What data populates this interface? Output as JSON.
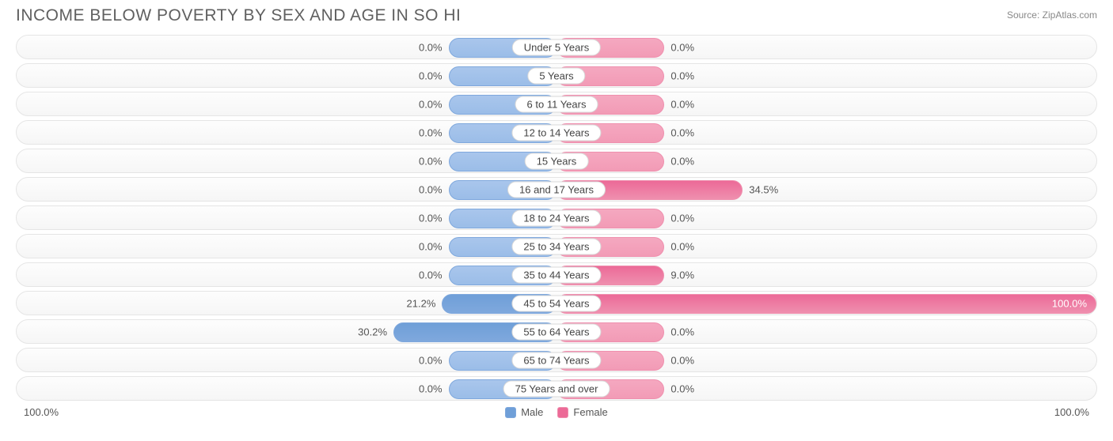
{
  "header": {
    "title": "INCOME BELOW POVERTY BY SEX AND AGE IN SO HI",
    "source": "Source: ZipAtlas.com"
  },
  "chart": {
    "type": "diverging-bar",
    "axis_max": 100.0,
    "min_bar_pct": 20.0,
    "male_color_fill": "#a9c6ec",
    "male_color_border": "#7fa8dd",
    "male_color_strong": "#6f9fd8",
    "female_color_fill": "#f5a8c0",
    "female_color_border": "#ef8fae",
    "female_color_strong": "#ec6a97",
    "track_bg_top": "#fdfdfd",
    "track_bg_bottom": "#f6f6f6",
    "track_border": "#e5e5e5",
    "label_bg": "#ffffff",
    "label_border": "#d8d8d8",
    "text_color": "#555555",
    "value_fontsize": 13,
    "label_fontsize": 13,
    "categories": [
      {
        "label": "Under 5 Years",
        "male": 0.0,
        "female": 0.0
      },
      {
        "label": "5 Years",
        "male": 0.0,
        "female": 0.0
      },
      {
        "label": "6 to 11 Years",
        "male": 0.0,
        "female": 0.0
      },
      {
        "label": "12 to 14 Years",
        "male": 0.0,
        "female": 0.0
      },
      {
        "label": "15 Years",
        "male": 0.0,
        "female": 0.0
      },
      {
        "label": "16 and 17 Years",
        "male": 0.0,
        "female": 34.5
      },
      {
        "label": "18 to 24 Years",
        "male": 0.0,
        "female": 0.0
      },
      {
        "label": "25 to 34 Years",
        "male": 0.0,
        "female": 0.0
      },
      {
        "label": "35 to 44 Years",
        "male": 0.0,
        "female": 9.0
      },
      {
        "label": "45 to 54 Years",
        "male": 21.2,
        "female": 100.0
      },
      {
        "label": "55 to 64 Years",
        "male": 30.2,
        "female": 0.0
      },
      {
        "label": "65 to 74 Years",
        "male": 0.0,
        "female": 0.0
      },
      {
        "label": "75 Years and over",
        "male": 0.0,
        "female": 0.0
      }
    ]
  },
  "footer": {
    "left_axis": "100.0%",
    "right_axis": "100.0%",
    "legend": {
      "male": "Male",
      "female": "Female"
    }
  }
}
